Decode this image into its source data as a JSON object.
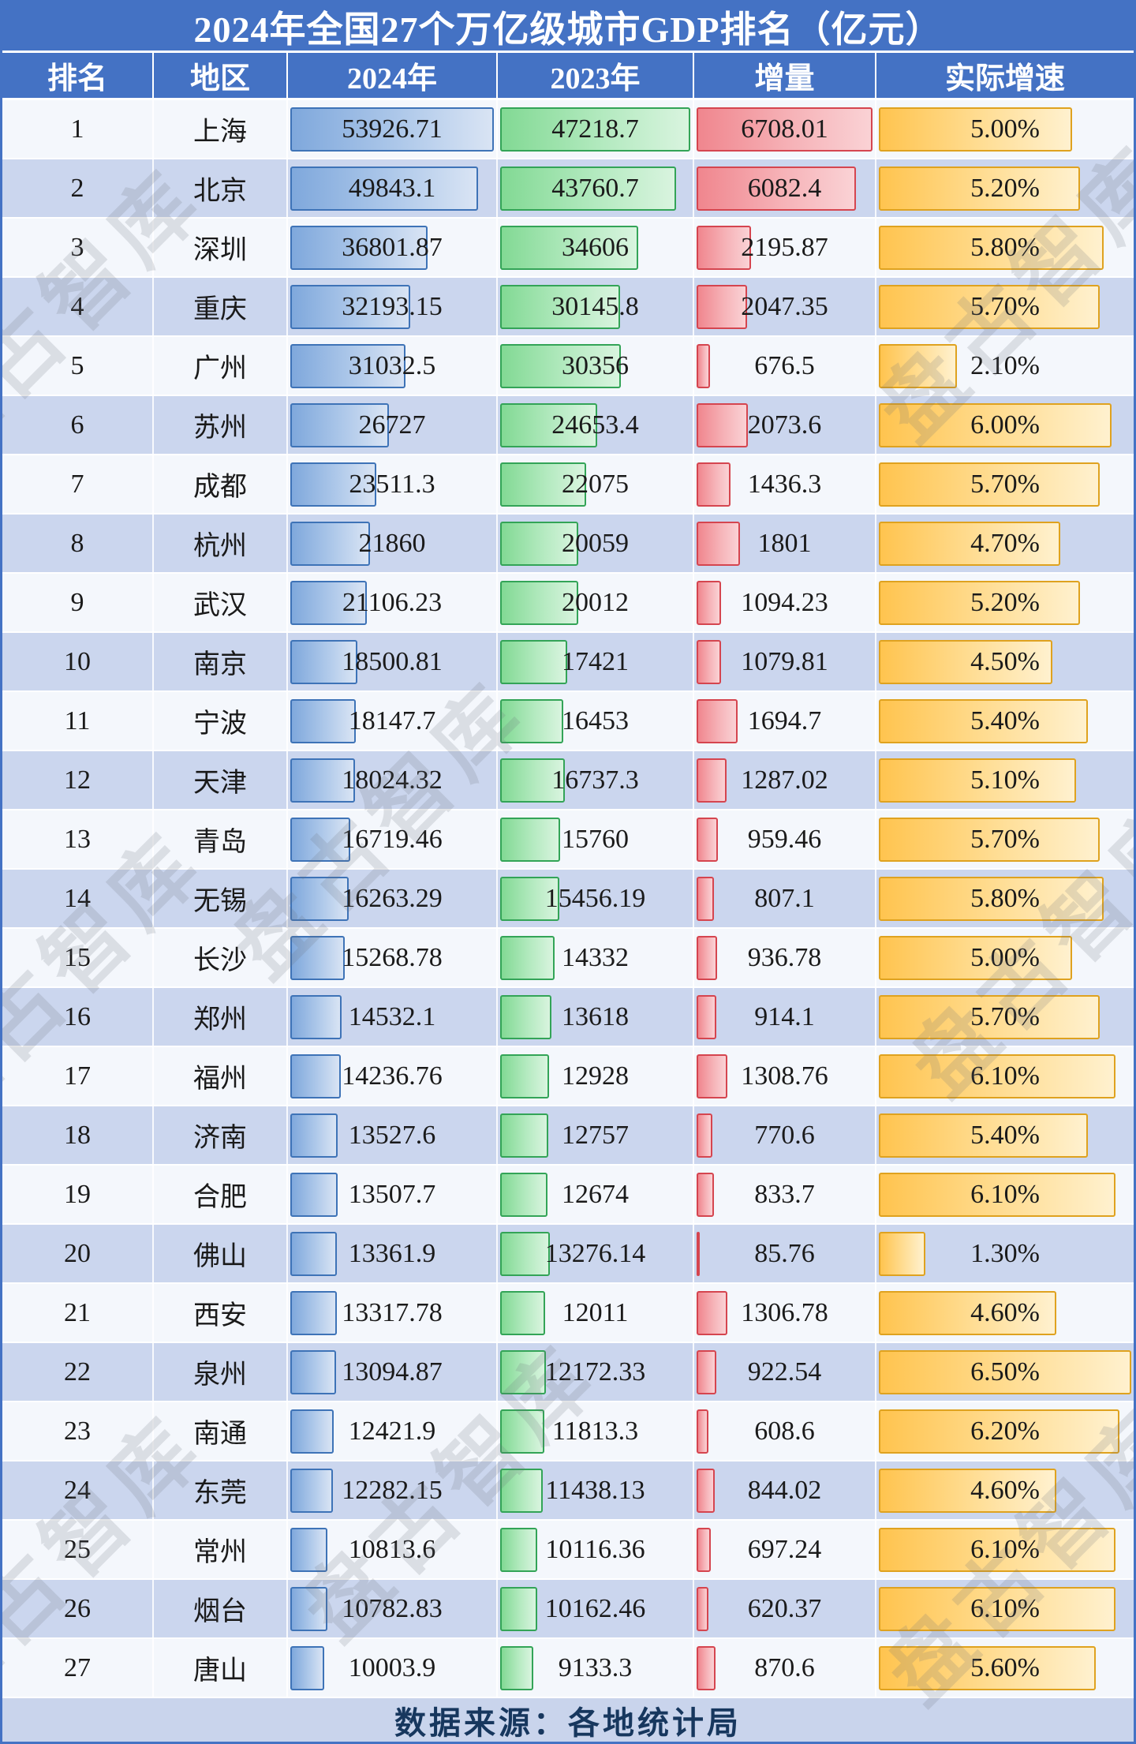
{
  "title": "2024年全国27个万亿级城市GDP排名（亿元）",
  "footer": "数据来源：各地统计局",
  "watermark": "盘古智库",
  "colors": {
    "header_bg": "#4472C4",
    "row_alt_bg": "#CBD6EE",
    "bar_2024": "#7FA8DC",
    "bar_2023": "#82D994",
    "bar_delta": "#F0868E",
    "bar_growth": "#FFC44F"
  },
  "chart_data": {
    "type": "table",
    "title": "2024年全国27个万亿级城市GDP排名（亿元）",
    "unit": "亿元",
    "columns": [
      "排名",
      "地区",
      "2024年",
      "2023年",
      "增量",
      "实际增速"
    ],
    "bar_scale_max": {
      "y2024": 53926.71,
      "y2023": 47218.7,
      "delta": 6708.01,
      "growth": 6.5
    },
    "rows": [
      {
        "rank": 1,
        "city": "上海",
        "y2024": 53926.71,
        "y2023": 47218.7,
        "delta": 6708.01,
        "growth": 5.0
      },
      {
        "rank": 2,
        "city": "北京",
        "y2024": 49843.1,
        "y2023": 43760.7,
        "delta": 6082.4,
        "growth": 5.2
      },
      {
        "rank": 3,
        "city": "深圳",
        "y2024": 36801.87,
        "y2023": 34606,
        "delta": 2195.87,
        "growth": 5.8
      },
      {
        "rank": 4,
        "city": "重庆",
        "y2024": 32193.15,
        "y2023": 30145.8,
        "delta": 2047.35,
        "growth": 5.7
      },
      {
        "rank": 5,
        "city": "广州",
        "y2024": 31032.5,
        "y2023": 30356,
        "delta": 676.5,
        "growth": 2.1
      },
      {
        "rank": 6,
        "city": "苏州",
        "y2024": 26727,
        "y2023": 24653.4,
        "delta": 2073.6,
        "growth": 6.0
      },
      {
        "rank": 7,
        "city": "成都",
        "y2024": 23511.3,
        "y2023": 22075,
        "delta": 1436.3,
        "growth": 5.7
      },
      {
        "rank": 8,
        "city": "杭州",
        "y2024": 21860,
        "y2023": 20059,
        "delta": 1801,
        "growth": 4.7
      },
      {
        "rank": 9,
        "city": "武汉",
        "y2024": 21106.23,
        "y2023": 20012,
        "delta": 1094.23,
        "growth": 5.2
      },
      {
        "rank": 10,
        "city": "南京",
        "y2024": 18500.81,
        "y2023": 17421,
        "delta": 1079.81,
        "growth": 4.5
      },
      {
        "rank": 11,
        "city": "宁波",
        "y2024": 18147.7,
        "y2023": 16453,
        "delta": 1694.7,
        "growth": 5.4
      },
      {
        "rank": 12,
        "city": "天津",
        "y2024": 18024.32,
        "y2023": 16737.3,
        "delta": 1287.02,
        "growth": 5.1
      },
      {
        "rank": 13,
        "city": "青岛",
        "y2024": 16719.46,
        "y2023": 15760,
        "delta": 959.46,
        "growth": 5.7
      },
      {
        "rank": 14,
        "city": "无锡",
        "y2024": 16263.29,
        "y2023": 15456.19,
        "delta": 807.1,
        "growth": 5.8
      },
      {
        "rank": 15,
        "city": "长沙",
        "y2024": 15268.78,
        "y2023": 14332,
        "delta": 936.78,
        "growth": 5.0
      },
      {
        "rank": 16,
        "city": "郑州",
        "y2024": 14532.1,
        "y2023": 13618,
        "delta": 914.1,
        "growth": 5.7
      },
      {
        "rank": 17,
        "city": "福州",
        "y2024": 14236.76,
        "y2023": 12928,
        "delta": 1308.76,
        "growth": 6.1
      },
      {
        "rank": 18,
        "city": "济南",
        "y2024": 13527.6,
        "y2023": 12757,
        "delta": 770.6,
        "growth": 5.4
      },
      {
        "rank": 19,
        "city": "合肥",
        "y2024": 13507.7,
        "y2023": 12674,
        "delta": 833.7,
        "growth": 6.1
      },
      {
        "rank": 20,
        "city": "佛山",
        "y2024": 13361.9,
        "y2023": 13276.14,
        "delta": 85.76,
        "growth": 1.3
      },
      {
        "rank": 21,
        "city": "西安",
        "y2024": 13317.78,
        "y2023": 12011,
        "delta": 1306.78,
        "growth": 4.6
      },
      {
        "rank": 22,
        "city": "泉州",
        "y2024": 13094.87,
        "y2023": 12172.33,
        "delta": 922.54,
        "growth": 6.5
      },
      {
        "rank": 23,
        "city": "南通",
        "y2024": 12421.9,
        "y2023": 11813.3,
        "delta": 608.6,
        "growth": 6.2
      },
      {
        "rank": 24,
        "city": "东莞",
        "y2024": 12282.15,
        "y2023": 11438.13,
        "delta": 844.02,
        "growth": 4.6
      },
      {
        "rank": 25,
        "city": "常州",
        "y2024": 10813.6,
        "y2023": 10116.36,
        "delta": 697.24,
        "growth": 6.1
      },
      {
        "rank": 26,
        "city": "烟台",
        "y2024": 10782.83,
        "y2023": 10162.46,
        "delta": 620.37,
        "growth": 6.1
      },
      {
        "rank": 27,
        "city": "唐山",
        "y2024": 10003.9,
        "y2023": 9133.3,
        "delta": 870.6,
        "growth": 5.6
      }
    ]
  }
}
